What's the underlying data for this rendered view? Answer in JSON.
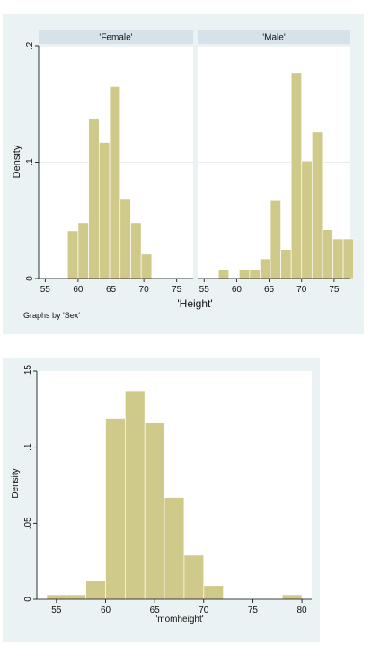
{
  "chart_data": [
    {
      "type": "bar",
      "subtype": "histogram-by-group",
      "ylabel": "Density",
      "xlabel": "'Height'",
      "note": "Graphs by 'Sex'",
      "xlim": [
        54,
        77.5
      ],
      "ylim": [
        0,
        0.2
      ],
      "xticks": [
        55,
        60,
        65,
        70,
        75
      ],
      "yticks": [
        {
          "value": 0,
          "label": "0"
        },
        {
          "value": 0.1,
          "label": ".1"
        },
        {
          "value": 0.2,
          "label": ".2"
        }
      ],
      "grid": true,
      "bar_color": "#cfc98a",
      "bin_width": 1.6,
      "panels": [
        {
          "name": "'Female'",
          "bins": [
            {
              "x0": 58.4,
              "x1": 60.0,
              "density": 0.041
            },
            {
              "x0": 60.0,
              "x1": 61.6,
              "density": 0.048
            },
            {
              "x0": 61.6,
              "x1": 63.2,
              "density": 0.137
            },
            {
              "x0": 63.2,
              "x1": 64.8,
              "density": 0.117
            },
            {
              "x0": 64.8,
              "x1": 66.4,
              "density": 0.165
            },
            {
              "x0": 66.4,
              "x1": 68.0,
              "density": 0.068
            },
            {
              "x0": 68.0,
              "x1": 69.6,
              "density": 0.048
            },
            {
              "x0": 69.6,
              "x1": 71.2,
              "density": 0.021
            }
          ]
        },
        {
          "name": "'Male'",
          "bins": [
            {
              "x0": 57.2,
              "x1": 58.8,
              "density": 0.008
            },
            {
              "x0": 58.8,
              "x1": 60.4,
              "density": 0.0
            },
            {
              "x0": 60.4,
              "x1": 62.0,
              "density": 0.008
            },
            {
              "x0": 62.0,
              "x1": 63.6,
              "density": 0.008
            },
            {
              "x0": 63.6,
              "x1": 65.2,
              "density": 0.017
            },
            {
              "x0": 65.2,
              "x1": 66.8,
              "density": 0.067
            },
            {
              "x0": 66.8,
              "x1": 68.4,
              "density": 0.025
            },
            {
              "x0": 68.4,
              "x1": 70.0,
              "density": 0.177
            },
            {
              "x0": 70.0,
              "x1": 71.6,
              "density": 0.101
            },
            {
              "x0": 71.6,
              "x1": 73.2,
              "density": 0.126
            },
            {
              "x0": 73.2,
              "x1": 74.8,
              "density": 0.042
            },
            {
              "x0": 74.8,
              "x1": 76.4,
              "density": 0.034
            },
            {
              "x0": 76.4,
              "x1": 78.0,
              "density": 0.034
            }
          ]
        }
      ]
    },
    {
      "type": "bar",
      "subtype": "histogram",
      "ylabel": "Density",
      "xlabel": "'momheight'",
      "xlim": [
        53,
        81
      ],
      "ylim": [
        0,
        0.15
      ],
      "xticks": [
        55,
        60,
        65,
        70,
        75,
        80
      ],
      "yticks": [
        {
          "value": 0,
          "label": "0"
        },
        {
          "value": 0.05,
          "label": ".05"
        },
        {
          "value": 0.1,
          "label": ".1"
        },
        {
          "value": 0.15,
          "label": ".15"
        }
      ],
      "grid": false,
      "bar_color": "#cfc98a",
      "bin_width": 2,
      "bins": [
        {
          "x0": 54,
          "x1": 56,
          "density": 0.003
        },
        {
          "x0": 56,
          "x1": 58,
          "density": 0.003
        },
        {
          "x0": 58,
          "x1": 60,
          "density": 0.012
        },
        {
          "x0": 60,
          "x1": 62,
          "density": 0.119
        },
        {
          "x0": 62,
          "x1": 64,
          "density": 0.137
        },
        {
          "x0": 64,
          "x1": 66,
          "density": 0.116
        },
        {
          "x0": 66,
          "x1": 68,
          "density": 0.067
        },
        {
          "x0": 68,
          "x1": 70,
          "density": 0.029
        },
        {
          "x0": 70,
          "x1": 72,
          "density": 0.009
        },
        {
          "x0": 78,
          "x1": 80,
          "density": 0.003
        }
      ]
    }
  ]
}
